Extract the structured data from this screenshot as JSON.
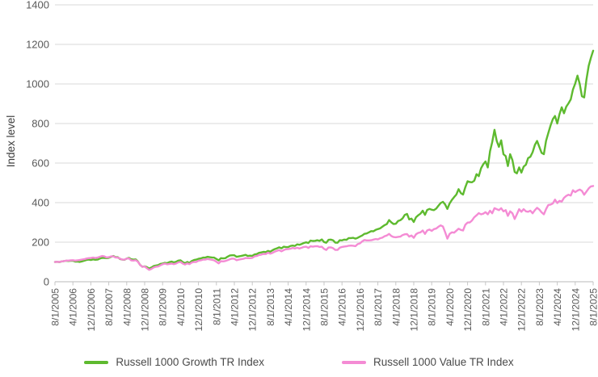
{
  "chart_data": {
    "type": "line",
    "title": "",
    "ylabel": "Index level",
    "xlabel": "",
    "ylim": [
      0,
      1400
    ],
    "y_ticks": [
      0,
      200,
      400,
      600,
      800,
      1000,
      1200,
      1400
    ],
    "grid": "horizontal",
    "grid_color": "#d9d9d9",
    "axis_color": "#c6c6c6",
    "tick_label_color": "#595959",
    "legend_position": "bottom",
    "x_unit": "monthly",
    "x_tick_labels": [
      "8/1/2005",
      "4/1/2006",
      "12/1/2006",
      "8/1/2007",
      "4/1/2008",
      "12/1/2008",
      "8/1/2009",
      "4/1/2010",
      "12/1/2010",
      "8/1/2011",
      "4/1/2012",
      "12/1/2012",
      "8/1/2013",
      "4/1/2014",
      "12/1/2014",
      "8/1/2015",
      "4/1/2016",
      "12/1/2016",
      "8/1/2017",
      "4/1/2018",
      "12/1/2018",
      "8/1/2019",
      "4/1/2020",
      "12/1/2020",
      "8/1/2021",
      "4/1/2022",
      "12/1/2022",
      "8/1/2023",
      "4/1/2024",
      "12/1/2024",
      "8/1/2025"
    ],
    "series": [
      {
        "name": "Russell 1000 Growth TR Index",
        "color": "#5eba2f",
        "values": [
          100,
          101,
          99,
          103,
          104,
          106,
          105,
          106,
          106,
          102,
          102,
          100,
          103,
          106,
          110,
          112,
          110,
          113,
          111,
          112,
          117,
          121,
          120,
          119,
          121,
          126,
          130,
          124,
          124,
          115,
          112,
          111,
          117,
          121,
          114,
          112,
          113,
          102,
          85,
          76,
          78,
          74,
          67,
          72,
          79,
          82,
          84,
          90,
          92,
          96,
          94,
          99,
          102,
          98,
          101,
          107,
          108,
          99,
          94,
          100,
          95,
          105,
          110,
          112,
          116,
          118,
          122,
          122,
          126,
          124,
          123,
          122,
          115,
          108,
          119,
          118,
          119,
          127,
          133,
          134,
          134,
          126,
          128,
          130,
          133,
          136,
          130,
          132,
          131,
          138,
          140,
          146,
          148,
          151,
          150,
          156,
          152,
          159,
          165,
          169,
          174,
          169,
          177,
          175,
          175,
          181,
          183,
          181,
          189,
          187,
          191,
          196,
          199,
          196,
          208,
          206,
          207,
          210,
          207,
          214,
          201,
          197,
          212,
          213,
          210,
          198,
          197,
          210,
          209,
          213,
          212,
          221,
          221,
          222,
          218,
          222,
          228,
          234,
          242,
          244,
          250,
          256,
          255,
          262,
          266,
          270,
          278,
          286,
          292,
          312,
          300,
          292,
          293,
          307,
          311,
          320,
          338,
          343,
          315,
          319,
          302,
          326,
          336,
          344,
          359,
          338,
          363,
          368,
          364,
          362,
          370,
          384,
          398,
          404,
          391,
          368,
          396,
          414,
          428,
          441,
          468,
          448,
          441,
          478,
          508,
          504,
          503,
          511,
          544,
          534,
          574,
          594,
          608,
          578,
          660,
          706,
          768,
          712,
          682,
          715,
          645,
          635,
          585,
          645,
          615,
          555,
          548,
          578,
          552,
          582,
          592,
          625,
          632,
          655,
          692,
          712,
          682,
          652,
          645,
          712,
          752,
          790,
          822,
          838,
          800,
          848,
          882,
          852,
          885,
          902,
          922,
          972,
          1002,
          1042,
          1000,
          938,
          932,
          1022,
          1092,
          1132,
          1168
        ]
      },
      {
        "name": "Russell 1000 Value TR Index",
        "color": "#f48bd4",
        "values": [
          100,
          101,
          100,
          103,
          104,
          107,
          107,
          108,
          109,
          107,
          108,
          110,
          112,
          114,
          117,
          119,
          120,
          122,
          120,
          122,
          126,
          130,
          128,
          123,
          124,
          128,
          128,
          123,
          122,
          117,
          112,
          112,
          117,
          118,
          108,
          107,
          109,
          101,
          85,
          75,
          77,
          68,
          60,
          65,
          72,
          76,
          77,
          83,
          88,
          92,
          88,
          90,
          92,
          89,
          92,
          98,
          100,
          92,
          87,
          93,
          89,
          97,
          100,
          100,
          106,
          108,
          112,
          112,
          115,
          113,
          111,
          108,
          101,
          93,
          104,
          103,
          105,
          109,
          114,
          117,
          116,
          109,
          112,
          114,
          116,
          120,
          119,
          119,
          121,
          128,
          130,
          135,
          137,
          141,
          140,
          147,
          142,
          146,
          152,
          156,
          160,
          154,
          160,
          164,
          165,
          167,
          171,
          168,
          172,
          168,
          172,
          176,
          177,
          171,
          179,
          177,
          179,
          180,
          176,
          177,
          166,
          161,
          173,
          174,
          170,
          161,
          161,
          172,
          176,
          178,
          179,
          182,
          183,
          182,
          180,
          190,
          194,
          204,
          211,
          209,
          209,
          210,
          213,
          216,
          214,
          220,
          223,
          230,
          234,
          242,
          231,
          226,
          225,
          227,
          228,
          236,
          240,
          241,
          228,
          234,
          222,
          240,
          247,
          250,
          259,
          242,
          259,
          264,
          257,
          266,
          269,
          278,
          285,
          279,
          251,
          218,
          242,
          250,
          248,
          258,
          268,
          262,
          259,
          288,
          299,
          300,
          310,
          326,
          336,
          347,
          341,
          344,
          352,
          341,
          359,
          346,
          372,
          367,
          362,
          372,
          356,
          362,
          333,
          356,
          346,
          317,
          341,
          367,
          354,
          367,
          356,
          354,
          359,
          346,
          362,
          374,
          365,
          351,
          341,
          367,
          388,
          390,
          396,
          415,
          398,
          409,
          405,
          424,
          434,
          440,
          436,
          463,
          453,
          461,
          466,
          459,
          440,
          456,
          472,
          482,
          484
        ]
      }
    ]
  }
}
